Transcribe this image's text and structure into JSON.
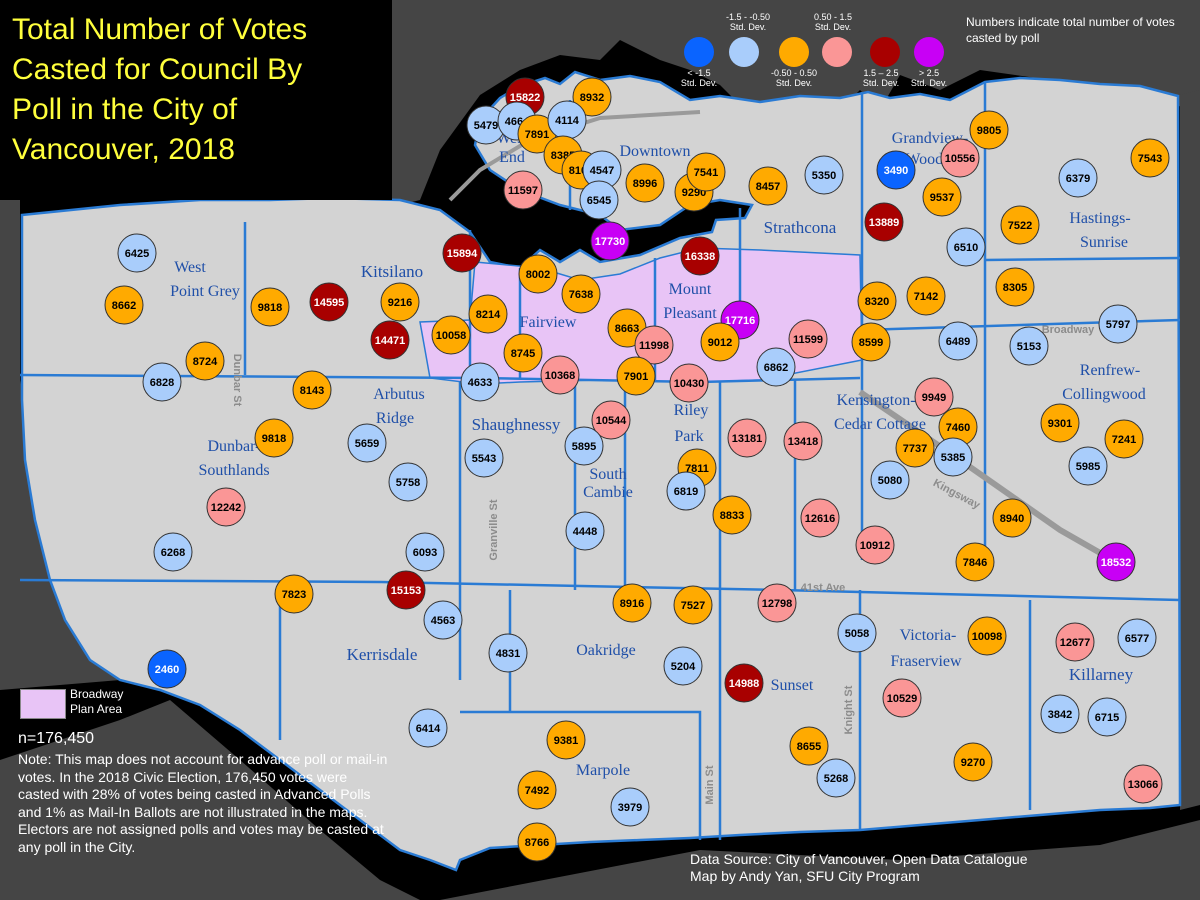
{
  "title": {
    "lines": [
      "Total Number of Votes",
      "Casted for Council By",
      "Poll in the City of",
      "Vancouver, 2018"
    ]
  },
  "legend": {
    "note": "Numbers indicate total number of votes casted by poll",
    "classes": [
      {
        "range": "< -1.5",
        "unit": "Std. Dev.",
        "color": "#0a64ff"
      },
      {
        "range": "-1.5 - -0.50",
        "unit": "Std. Dev.",
        "color": "#a9cdfb"
      },
      {
        "range": "-0.50 - 0.50",
        "unit": "Std. Dev.",
        "color": "#ffaa00"
      },
      {
        "range": "0.50 - 1.5",
        "unit": "Std. Dev.",
        "color": "#fa9696"
      },
      {
        "range": "1.5 – 2.5",
        "unit": "Std. Dev.",
        "color": "#a80000"
      },
      {
        "range": "> 2.5",
        "unit": "Std. Dev.",
        "color": "#c800f5"
      }
    ],
    "broadway_label": "Broadway Plan Area",
    "broadway_color": "#e8c4f6"
  },
  "neighbourhoods": [
    "West Point Grey",
    "Kitsilano",
    "West End",
    "Downtown",
    "Grandview-Woodland",
    "Strathcona",
    "Hastings-Sunrise",
    "Fairview",
    "Mount Pleasant",
    "Renfrew-Collingwood",
    "Arbutus Ridge",
    "Shaughnessy",
    "Riley Park",
    "Kensington-Cedar Cottage",
    "Dunbar-Southlands",
    "South Cambie",
    "Kerrisdale",
    "Oakridge",
    "Sunset",
    "Victoria-Fraserview",
    "Killarney",
    "Marpole"
  ],
  "streets": [
    "Dunbar St",
    "Granville St",
    "Main St",
    "Knight St",
    "Broadway",
    "Kingsway",
    "41st Ave"
  ],
  "polls": [
    {
      "votes": 15822,
      "cls": 4
    },
    {
      "votes": 8932,
      "cls": 2
    },
    {
      "votes": 5479,
      "cls": 1
    },
    {
      "votes": 4664,
      "cls": 1
    },
    {
      "votes": 7891,
      "cls": 2
    },
    {
      "votes": 4114,
      "cls": 1
    },
    {
      "votes": 8385,
      "cls": 2
    },
    {
      "votes": 8105,
      "cls": 2
    },
    {
      "votes": 4547,
      "cls": 1
    },
    {
      "votes": 11597,
      "cls": 3
    },
    {
      "votes": 6545,
      "cls": 1
    },
    {
      "votes": 8996,
      "cls": 2
    },
    {
      "votes": 9290,
      "cls": 2
    },
    {
      "votes": 7541,
      "cls": 2
    },
    {
      "votes": 8457,
      "cls": 2
    },
    {
      "votes": 5350,
      "cls": 1
    },
    {
      "votes": 9805,
      "cls": 2
    },
    {
      "votes": 3490,
      "cls": 0
    },
    {
      "votes": 10556,
      "cls": 3
    },
    {
      "votes": 6379,
      "cls": 1
    },
    {
      "votes": 7543,
      "cls": 2
    },
    {
      "votes": 9537,
      "cls": 2
    },
    {
      "votes": 13889,
      "cls": 4
    },
    {
      "votes": 7522,
      "cls": 2
    },
    {
      "votes": 17730,
      "cls": 5
    },
    {
      "votes": 16338,
      "cls": 4
    },
    {
      "votes": 6510,
      "cls": 1
    },
    {
      "votes": 6425,
      "cls": 1
    },
    {
      "votes": 15894,
      "cls": 4
    },
    {
      "votes": 8002,
      "cls": 2
    },
    {
      "votes": 8662,
      "cls": 2
    },
    {
      "votes": 9818,
      "cls": 2
    },
    {
      "votes": 14595,
      "cls": 4
    },
    {
      "votes": 9216,
      "cls": 2
    },
    {
      "votes": 8214,
      "cls": 2
    },
    {
      "votes": 7638,
      "cls": 2
    },
    {
      "votes": 8320,
      "cls": 2
    },
    {
      "votes": 7142,
      "cls": 2
    },
    {
      "votes": 8305,
      "cls": 2
    },
    {
      "votes": 14471,
      "cls": 4
    },
    {
      "votes": 10058,
      "cls": 2
    },
    {
      "votes": 8663,
      "cls": 2
    },
    {
      "votes": 17716,
      "cls": 5
    },
    {
      "votes": 11998,
      "cls": 3
    },
    {
      "votes": 9012,
      "cls": 2
    },
    {
      "votes": 11599,
      "cls": 3
    },
    {
      "votes": 8599,
      "cls": 2
    },
    {
      "votes": 6489,
      "cls": 1
    },
    {
      "votes": 5153,
      "cls": 1
    },
    {
      "votes": 5797,
      "cls": 1
    },
    {
      "votes": 6828,
      "cls": 1
    },
    {
      "votes": 8724,
      "cls": 2
    },
    {
      "votes": 8745,
      "cls": 2
    },
    {
      "votes": 10368,
      "cls": 3
    },
    {
      "votes": 7901,
      "cls": 2
    },
    {
      "votes": 10430,
      "cls": 3
    },
    {
      "votes": 6862,
      "cls": 1
    },
    {
      "votes": 8143,
      "cls": 2
    },
    {
      "votes": 4633,
      "cls": 1
    },
    {
      "votes": 9949,
      "cls": 3
    },
    {
      "votes": 7460,
      "cls": 2
    },
    {
      "votes": 9818,
      "cls": 2
    },
    {
      "votes": 5659,
      "cls": 1
    },
    {
      "votes": 10544,
      "cls": 3
    },
    {
      "votes": 5895,
      "cls": 1
    },
    {
      "votes": 13181,
      "cls": 3
    },
    {
      "votes": 13418,
      "cls": 3
    },
    {
      "votes": 7737,
      "cls": 2
    },
    {
      "votes": 5385,
      "cls": 1
    },
    {
      "votes": 9301,
      "cls": 2
    },
    {
      "votes": 7241,
      "cls": 2
    },
    {
      "votes": 5543,
      "cls": 1
    },
    {
      "votes": 7811,
      "cls": 2
    },
    {
      "votes": 5985,
      "cls": 1
    },
    {
      "votes": 5758,
      "cls": 1
    },
    {
      "votes": 6819,
      "cls": 1
    },
    {
      "votes": 5080,
      "cls": 1
    },
    {
      "votes": 12242,
      "cls": 3
    },
    {
      "votes": 8833,
      "cls": 2
    },
    {
      "votes": 12616,
      "cls": 3
    },
    {
      "votes": 8940,
      "cls": 2
    },
    {
      "votes": 4448,
      "cls": 1
    },
    {
      "votes": 10912,
      "cls": 3
    },
    {
      "votes": 6268,
      "cls": 1
    },
    {
      "votes": 6093,
      "cls": 1
    },
    {
      "votes": 7846,
      "cls": 2
    },
    {
      "votes": 18532,
      "cls": 5
    },
    {
      "votes": 15153,
      "cls": 4
    },
    {
      "votes": 7823,
      "cls": 2
    },
    {
      "votes": 8916,
      "cls": 2
    },
    {
      "votes": 7527,
      "cls": 2
    },
    {
      "votes": 12798,
      "cls": 3
    },
    {
      "votes": 4563,
      "cls": 1
    },
    {
      "votes": 5058,
      "cls": 1
    },
    {
      "votes": 10098,
      "cls": 2
    },
    {
      "votes": 12677,
      "cls": 3
    },
    {
      "votes": 6577,
      "cls": 1
    },
    {
      "votes": 2460,
      "cls": 0
    },
    {
      "votes": 4831,
      "cls": 1
    },
    {
      "votes": 5204,
      "cls": 1
    },
    {
      "votes": 14988,
      "cls": 4
    },
    {
      "votes": 10529,
      "cls": 3
    },
    {
      "votes": 3842,
      "cls": 1
    },
    {
      "votes": 6715,
      "cls": 1
    },
    {
      "votes": 6414,
      "cls": 1
    },
    {
      "votes": 9381,
      "cls": 2
    },
    {
      "votes": 8655,
      "cls": 2
    },
    {
      "votes": 9270,
      "cls": 2
    },
    {
      "votes": 13066,
      "cls": 3
    },
    {
      "votes": 5268,
      "cls": 1
    },
    {
      "votes": 7492,
      "cls": 2
    },
    {
      "votes": 3979,
      "cls": 1
    },
    {
      "votes": 8766,
      "cls": 2
    }
  ],
  "n_label": "n=176,450",
  "note": "Note: This map does not account for advance poll or mail-in votes. In the 2018 Civic Election, 176,450 votes were casted with 28% of votes being casted in Advanced Polls and 1% as Mail-In Ballots are not illustrated in the maps. Electors are not assigned polls and votes may be casted at any poll in the City.",
  "source": [
    "Data Source: City of Vancouver, Open Data Catalogue",
    "Map by Andy Yan, SFU City Program"
  ]
}
